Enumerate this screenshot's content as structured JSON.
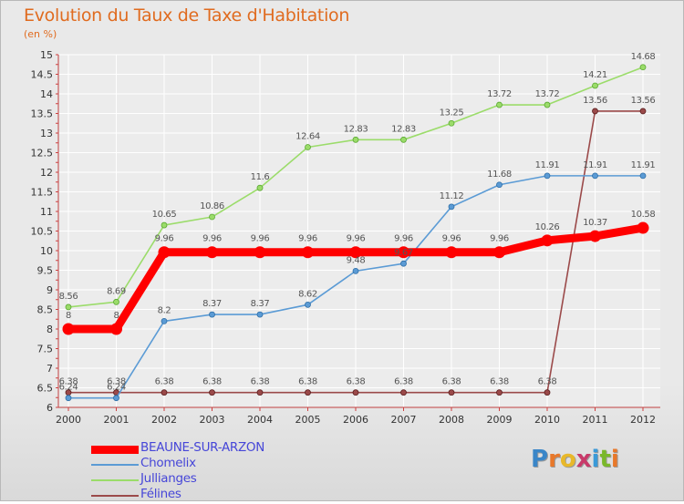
{
  "title": "Evolution du Taux de Taxe d'Habitation",
  "unit": "(en %)",
  "logo": {
    "text": "Proxiti",
    "letters": [
      {
        "ch": "P",
        "color": "#3a86c8"
      },
      {
        "ch": "r",
        "color": "#e8782a"
      },
      {
        "ch": "o",
        "color": "#e8b82a"
      },
      {
        "ch": "x",
        "color": "#c83a6a"
      },
      {
        "ch": "i",
        "color": "#3a9ad8"
      },
      {
        "ch": "t",
        "color": "#7ab82a"
      },
      {
        "ch": "i",
        "color": "#e8782a"
      }
    ]
  },
  "chart_data": {
    "type": "line",
    "title": "Evolution du Taux de Taxe d'Habitation",
    "ylabel": "(en %)",
    "xlabel": "",
    "x": [
      2000,
      2001,
      2002,
      2003,
      2004,
      2005,
      2006,
      2007,
      2008,
      2009,
      2010,
      2011,
      2012
    ],
    "ylim": [
      6,
      15
    ],
    "yticks": [
      6,
      6.5,
      7,
      7.5,
      8,
      8.5,
      9,
      9.5,
      10,
      10.5,
      11,
      11.5,
      12,
      12.5,
      13,
      13.5,
      14,
      14.5,
      15
    ],
    "ytick_labels": [
      "6",
      "6.5",
      "7",
      "7.5",
      "8",
      "8.5",
      "9",
      "9.5",
      "10",
      "10.5",
      "11",
      "11.5",
      "12",
      "12.5",
      "13",
      "13.5",
      "14",
      "14.5",
      "15"
    ],
    "grid": true,
    "legend": "bottom-left",
    "series": [
      {
        "name": "BEAUNE-SUR-ARZON",
        "color": "#ff0000",
        "values": [
          8,
          8,
          9.96,
          9.96,
          9.96,
          9.96,
          9.96,
          9.96,
          9.96,
          9.96,
          10.26,
          10.37,
          10.58
        ],
        "labels": [
          "8",
          "8",
          "9.96",
          "9.96",
          "9.96",
          "9.96",
          "9.96",
          "9.96",
          "9.96",
          "9.96",
          "10.26",
          "10.37",
          "10.58"
        ]
      },
      {
        "name": "Chomelix",
        "color": "#5b9bd5",
        "values": [
          6.24,
          6.24,
          8.2,
          8.37,
          8.37,
          8.62,
          9.48,
          9.67,
          11.12,
          11.68,
          11.91,
          11.91,
          11.91
        ],
        "labels": [
          "6.24",
          "6.24",
          "8.2",
          "8.37",
          "8.37",
          "8.62",
          "9.48",
          "9.67",
          "11.12",
          "11.68",
          "11.91",
          "11.91",
          "11.91"
        ]
      },
      {
        "name": "Jullianges",
        "color": "#9bdc6a",
        "values": [
          8.56,
          8.69,
          10.65,
          10.86,
          11.6,
          12.64,
          12.83,
          12.83,
          13.25,
          13.72,
          13.72,
          14.21,
          14.68
        ],
        "labels": [
          "8.56",
          "8.69",
          "10.65",
          "10.86",
          "11.6",
          "12.64",
          "12.83",
          "12.83",
          "13.25",
          "13.72",
          "13.72",
          "14.21",
          "14.68"
        ]
      },
      {
        "name": "Félines",
        "color": "#9b4a4a",
        "values": [
          6.38,
          6.38,
          6.38,
          6.38,
          6.38,
          6.38,
          6.38,
          6.38,
          6.38,
          6.38,
          6.38,
          13.56,
          13.56
        ],
        "labels": [
          "6.38",
          "6.38",
          "6.38",
          "6.38",
          "6.38",
          "6.38",
          "6.38",
          "6.38",
          "6.38",
          "6.38",
          "6.38",
          "13.56",
          "13.56"
        ]
      }
    ]
  }
}
